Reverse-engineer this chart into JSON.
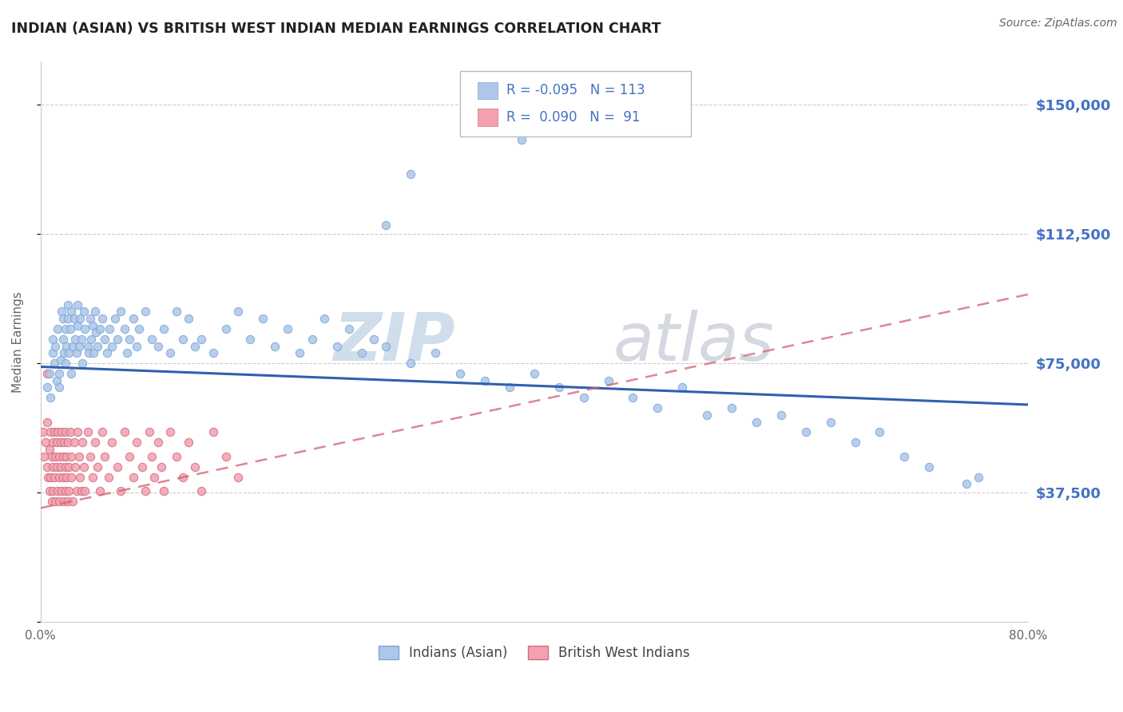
{
  "title": "INDIAN (ASIAN) VS BRITISH WEST INDIAN MEDIAN EARNINGS CORRELATION CHART",
  "source": "Source: ZipAtlas.com",
  "ylabel": "Median Earnings",
  "xlim": [
    0.0,
    0.8
  ],
  "ylim": [
    0,
    162500
  ],
  "yticks": [
    0,
    37500,
    75000,
    112500,
    150000
  ],
  "ytick_labels": [
    "",
    "$37,500",
    "$75,000",
    "$112,500",
    "$150,000"
  ],
  "xticks": [
    0.0,
    0.1,
    0.2,
    0.3,
    0.4,
    0.5,
    0.6,
    0.7,
    0.8
  ],
  "xtick_labels": [
    "0.0%",
    "",
    "",
    "",
    "",
    "",
    "",
    "",
    "80.0%"
  ],
  "blue_color": "#aec6e8",
  "pink_color": "#f4a0b0",
  "blue_edge_color": "#7aa8d8",
  "pink_edge_color": "#d07080",
  "blue_line_color": "#3060b0",
  "pink_line_color": "#d06070",
  "right_label_color": "#4472c4",
  "legend_label1": "Indians (Asian)",
  "legend_label2": "British West Indians",
  "blue_line_x0": 0.0,
  "blue_line_y0": 74000,
  "blue_line_x1": 0.8,
  "blue_line_y1": 63000,
  "pink_line_x0": 0.0,
  "pink_line_x1": 0.8,
  "pink_line_y0": 33000,
  "pink_line_y1": 95000,
  "blue_scatter_x": [
    0.005,
    0.007,
    0.008,
    0.01,
    0.01,
    0.011,
    0.012,
    0.013,
    0.014,
    0.015,
    0.015,
    0.016,
    0.017,
    0.018,
    0.018,
    0.019,
    0.02,
    0.02,
    0.021,
    0.022,
    0.022,
    0.023,
    0.024,
    0.025,
    0.025,
    0.026,
    0.027,
    0.028,
    0.029,
    0.03,
    0.03,
    0.031,
    0.032,
    0.033,
    0.034,
    0.035,
    0.036,
    0.038,
    0.039,
    0.04,
    0.041,
    0.042,
    0.043,
    0.044,
    0.045,
    0.046,
    0.048,
    0.05,
    0.052,
    0.054,
    0.056,
    0.058,
    0.06,
    0.062,
    0.065,
    0.068,
    0.07,
    0.072,
    0.075,
    0.078,
    0.08,
    0.085,
    0.09,
    0.095,
    0.1,
    0.105,
    0.11,
    0.115,
    0.12,
    0.125,
    0.13,
    0.14,
    0.15,
    0.16,
    0.17,
    0.18,
    0.19,
    0.2,
    0.21,
    0.22,
    0.23,
    0.24,
    0.25,
    0.26,
    0.27,
    0.28,
    0.3,
    0.32,
    0.34,
    0.36,
    0.38,
    0.4,
    0.42,
    0.44,
    0.46,
    0.48,
    0.5,
    0.52,
    0.54,
    0.56,
    0.58,
    0.6,
    0.62,
    0.64,
    0.66,
    0.68,
    0.7,
    0.72,
    0.75,
    0.76,
    0.28,
    0.3,
    0.39
  ],
  "blue_scatter_y": [
    68000,
    72000,
    65000,
    78000,
    82000,
    75000,
    80000,
    70000,
    85000,
    72000,
    68000,
    76000,
    90000,
    82000,
    88000,
    78000,
    75000,
    85000,
    80000,
    92000,
    88000,
    78000,
    85000,
    90000,
    72000,
    80000,
    88000,
    82000,
    78000,
    86000,
    92000,
    80000,
    88000,
    82000,
    75000,
    90000,
    85000,
    80000,
    78000,
    88000,
    82000,
    86000,
    78000,
    90000,
    84000,
    80000,
    85000,
    88000,
    82000,
    78000,
    85000,
    80000,
    88000,
    82000,
    90000,
    85000,
    78000,
    82000,
    88000,
    80000,
    85000,
    90000,
    82000,
    80000,
    85000,
    78000,
    90000,
    82000,
    88000,
    80000,
    82000,
    78000,
    85000,
    90000,
    82000,
    88000,
    80000,
    85000,
    78000,
    82000,
    88000,
    80000,
    85000,
    78000,
    82000,
    80000,
    75000,
    78000,
    72000,
    70000,
    68000,
    72000,
    68000,
    65000,
    70000,
    65000,
    62000,
    68000,
    60000,
    62000,
    58000,
    60000,
    55000,
    58000,
    52000,
    55000,
    48000,
    45000,
    40000,
    42000,
    115000,
    130000,
    140000
  ],
  "pink_scatter_x": [
    0.002,
    0.003,
    0.004,
    0.005,
    0.005,
    0.006,
    0.007,
    0.007,
    0.008,
    0.008,
    0.009,
    0.009,
    0.01,
    0.01,
    0.01,
    0.011,
    0.011,
    0.012,
    0.012,
    0.013,
    0.013,
    0.014,
    0.014,
    0.015,
    0.015,
    0.015,
    0.016,
    0.016,
    0.017,
    0.017,
    0.018,
    0.018,
    0.019,
    0.019,
    0.02,
    0.02,
    0.02,
    0.021,
    0.021,
    0.022,
    0.022,
    0.023,
    0.023,
    0.024,
    0.025,
    0.025,
    0.026,
    0.027,
    0.028,
    0.029,
    0.03,
    0.031,
    0.032,
    0.033,
    0.034,
    0.035,
    0.036,
    0.038,
    0.04,
    0.042,
    0.044,
    0.046,
    0.048,
    0.05,
    0.052,
    0.055,
    0.058,
    0.062,
    0.065,
    0.068,
    0.072,
    0.075,
    0.078,
    0.082,
    0.085,
    0.088,
    0.09,
    0.092,
    0.095,
    0.098,
    0.1,
    0.105,
    0.11,
    0.115,
    0.12,
    0.125,
    0.13,
    0.14,
    0.15,
    0.16,
    0.005
  ],
  "pink_scatter_y": [
    55000,
    48000,
    52000,
    45000,
    58000,
    42000,
    50000,
    38000,
    55000,
    42000,
    48000,
    35000,
    52000,
    45000,
    38000,
    55000,
    42000,
    48000,
    35000,
    52000,
    45000,
    38000,
    55000,
    42000,
    48000,
    35000,
    52000,
    45000,
    38000,
    55000,
    42000,
    48000,
    35000,
    52000,
    45000,
    38000,
    55000,
    42000,
    48000,
    35000,
    52000,
    45000,
    38000,
    55000,
    42000,
    48000,
    35000,
    52000,
    45000,
    38000,
    55000,
    48000,
    42000,
    38000,
    52000,
    45000,
    38000,
    55000,
    48000,
    42000,
    52000,
    45000,
    38000,
    55000,
    48000,
    42000,
    52000,
    45000,
    38000,
    55000,
    48000,
    42000,
    52000,
    45000,
    38000,
    55000,
    48000,
    42000,
    52000,
    45000,
    38000,
    55000,
    48000,
    42000,
    52000,
    45000,
    38000,
    55000,
    48000,
    42000,
    72000
  ]
}
